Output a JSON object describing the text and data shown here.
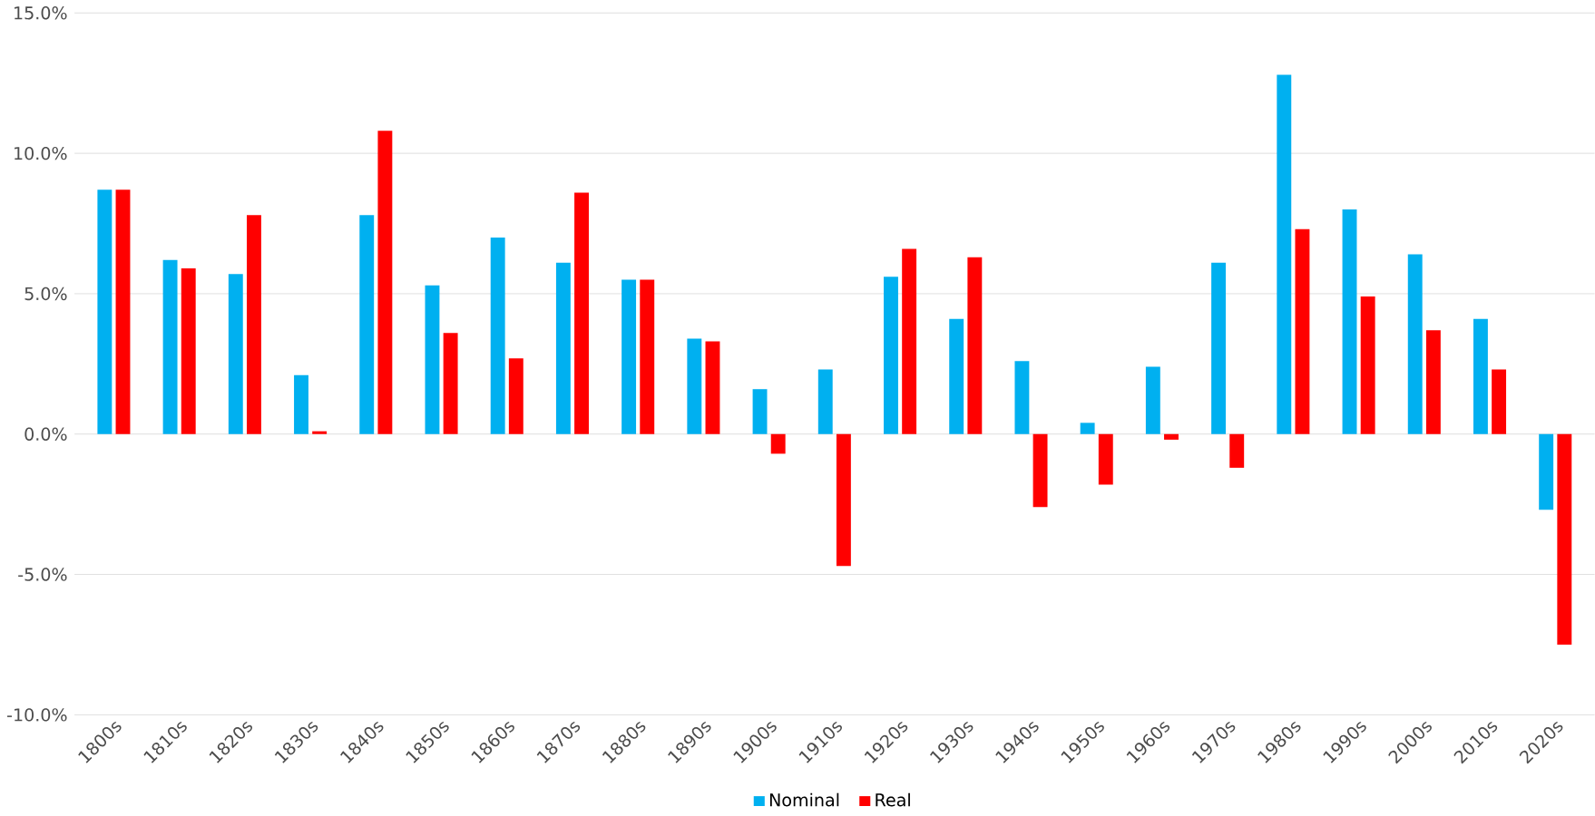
{
  "chart_data": {
    "type": "bar",
    "categories": [
      "1800s",
      "1810s",
      "1820s",
      "1830s",
      "1840s",
      "1850s",
      "1860s",
      "1870s",
      "1880s",
      "1890s",
      "1900s",
      "1910s",
      "1920s",
      "1930s",
      "1940s",
      "1950s",
      "1960s",
      "1970s",
      "1980s",
      "1990s",
      "2000s",
      "2010s",
      "2020s"
    ],
    "series": [
      {
        "name": "Nominal",
        "color": "#00b0f0",
        "values": [
          8.7,
          6.2,
          5.7,
          2.1,
          7.8,
          5.3,
          7.0,
          6.1,
          5.5,
          3.4,
          1.6,
          2.3,
          5.6,
          4.1,
          2.6,
          0.4,
          2.4,
          6.1,
          12.8,
          8.0,
          6.4,
          4.1,
          -2.7
        ]
      },
      {
        "name": "Real",
        "color": "#ff0000",
        "values": [
          8.7,
          5.9,
          7.8,
          0.1,
          10.8,
          3.6,
          2.7,
          8.6,
          5.5,
          3.3,
          -0.7,
          -4.7,
          6.6,
          6.3,
          -2.6,
          -1.8,
          -0.2,
          -1.2,
          7.3,
          4.9,
          3.7,
          2.3,
          -7.5
        ]
      }
    ],
    "ylim": [
      -10,
      15
    ],
    "yticks": [
      {
        "value": -10,
        "label": "-10.0%"
      },
      {
        "value": -5,
        "label": "-5.0%"
      },
      {
        "value": 0,
        "label": "0.0%"
      },
      {
        "value": 5,
        "label": "5.0%"
      },
      {
        "value": 10,
        "label": "10.0%"
      },
      {
        "value": 15,
        "label": "15.0%"
      }
    ],
    "grid": "y",
    "legend": "bottom"
  }
}
